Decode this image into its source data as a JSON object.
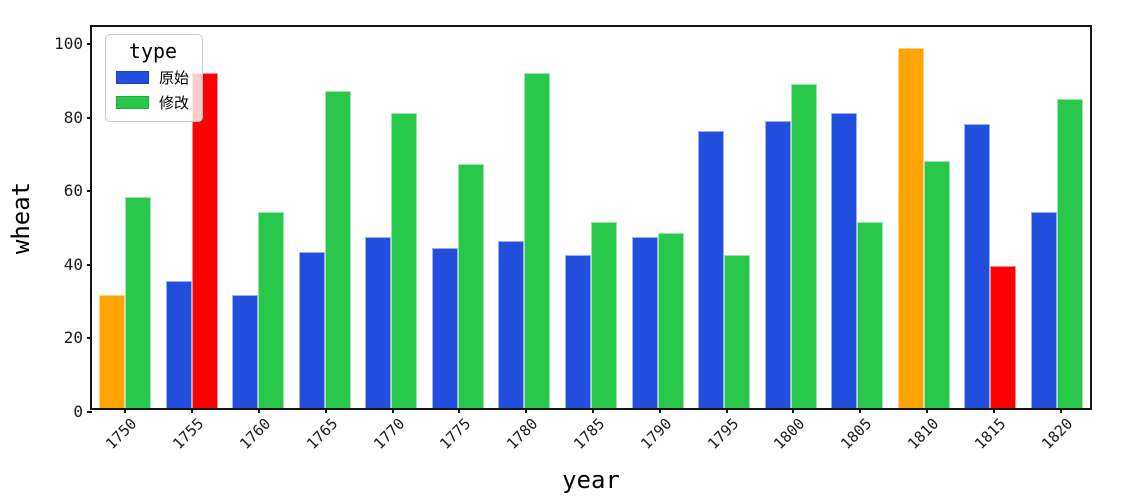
{
  "chart_data": {
    "type": "bar",
    "title": "",
    "xlabel": "year",
    "ylabel": "wheat",
    "ylim": [
      0,
      104.7
    ],
    "yticks": [
      0,
      20,
      40,
      60,
      80,
      100
    ],
    "grid": false,
    "categories": [
      "1750",
      "1755",
      "1760",
      "1765",
      "1770",
      "1775",
      "1780",
      "1785",
      "1790",
      "1795",
      "1800",
      "1805",
      "1810",
      "1815",
      "1820"
    ],
    "series": [
      {
        "name": "原始",
        "default_color": "#214edc",
        "values": [
          31,
          35,
          31,
          43,
          47,
          44,
          46,
          42,
          47,
          76,
          79,
          81,
          99,
          78,
          54
        ],
        "bar_colors": [
          "#ffa502",
          "#214edc",
          "#214edc",
          "#214edc",
          "#214edc",
          "#214edc",
          "#214edc",
          "#214edc",
          "#214edc",
          "#214edc",
          "#214edc",
          "#214edc",
          "#ffa502",
          "#214edc",
          "#214edc"
        ]
      },
      {
        "name": "修改",
        "default_color": "#28c84b",
        "values": [
          58,
          92,
          54,
          87,
          81,
          67,
          92,
          51,
          48,
          42,
          89,
          51,
          68,
          39,
          85
        ],
        "bar_colors": [
          "#28c84b",
          "#ff0000",
          "#28c84b",
          "#28c84b",
          "#28c84b",
          "#28c84b",
          "#28c84b",
          "#28c84b",
          "#28c84b",
          "#28c84b",
          "#28c84b",
          "#28c84b",
          "#28c84b",
          "#ff0000",
          "#28c84b"
        ]
      }
    ],
    "highlight_colors": {
      "orange": "#ffa502",
      "red": "#ff0000"
    },
    "legend": {
      "title": "type",
      "position": "upper-left",
      "entries": [
        {
          "label": "原始",
          "color": "#214edc"
        },
        {
          "label": "修改",
          "color": "#28c84b"
        }
      ]
    }
  }
}
